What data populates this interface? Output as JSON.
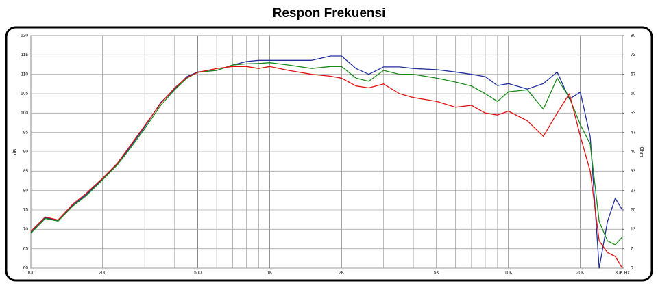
{
  "chart_data": {
    "type": "line",
    "title": "Respon Frekuensi",
    "ylabel": "dB",
    "y2label": "Ohm",
    "log_x": true,
    "grid": true,
    "x": [
      100,
      115,
      130,
      150,
      170,
      200,
      230,
      260,
      300,
      350,
      400,
      450,
      500,
      600,
      700,
      800,
      900,
      1000,
      1200,
      1500,
      1800,
      2000,
      2300,
      2600,
      3000,
      3500,
      4000,
      5000,
      6000,
      7000,
      8000,
      9000,
      10000,
      12000,
      14000,
      16000,
      18000,
      20000,
      22000,
      24000,
      26000,
      28000,
      30000
    ],
    "series": [
      {
        "color": "#1f2f9c",
        "values": [
          69.2,
          73,
          72.2,
          76.2,
          78.9,
          83,
          86.8,
          91.2,
          96.5,
          102.7,
          106.2,
          109.4,
          110.6,
          111,
          112.4,
          113.3,
          113.6,
          113.6,
          113.6,
          113.6,
          114.7,
          114.7,
          111.5,
          110,
          111.9,
          111.9,
          111.5,
          111.2,
          110.6,
          110,
          109.4,
          107.1,
          107.6,
          106.2,
          107.6,
          110.6,
          103.6,
          105.4,
          93.9,
          60,
          72,
          78,
          75
        ]
      },
      {
        "color": "#1a8a1a",
        "values": [
          69,
          72.8,
          72.1,
          76,
          78.6,
          82.8,
          86.6,
          90.8,
          96,
          102,
          106,
          109,
          110.5,
          111,
          112.4,
          112.7,
          112.8,
          113,
          112.4,
          111.5,
          112,
          112,
          109,
          108.2,
          111,
          110,
          110,
          109,
          108,
          107,
          105,
          103,
          105.5,
          106,
          101,
          109,
          104,
          97,
          92,
          72,
          67,
          66,
          68
        ]
      },
      {
        "color": "#e01010",
        "values": [
          69.5,
          73.2,
          72.4,
          76.5,
          79.2,
          83.2,
          87,
          91.5,
          96.8,
          102.5,
          106.5,
          109.2,
          110.5,
          111.5,
          112,
          112,
          111.5,
          112,
          111,
          110,
          109.5,
          109,
          107,
          106.5,
          107.5,
          105,
          104,
          103,
          101.5,
          102,
          100,
          99.5,
          100.5,
          98,
          94,
          100,
          105,
          94,
          85,
          67,
          64,
          63,
          60
        ]
      }
    ],
    "xlim": [
      100,
      30000
    ],
    "xticks": [
      100,
      200,
      500,
      {
        "value": 1000,
        "label": "1K"
      },
      {
        "value": 2000,
        "label": "2K"
      },
      {
        "value": 5000,
        "label": "5K"
      },
      {
        "value": 10000,
        "label": "10K"
      },
      {
        "value": 20000,
        "label": "20K"
      },
      {
        "value": 30000,
        "label": "30K Hz"
      }
    ],
    "xgrid": [
      300,
      400,
      600,
      700,
      800,
      900,
      3000,
      4000,
      6000,
      7000,
      8000,
      9000
    ],
    "ylim": [
      60,
      120
    ],
    "yticks": [
      60,
      65,
      70,
      75,
      80,
      85,
      90,
      95,
      100,
      105,
      110,
      115,
      120
    ],
    "y2lim": [
      0,
      80
    ],
    "y2ticks": [
      0,
      {
        "value": 6.67,
        "label": "7"
      },
      {
        "value": 13.33,
        "label": "13"
      },
      20,
      {
        "value": 26.67,
        "label": "27"
      },
      {
        "value": 33.33,
        "label": "33"
      },
      40,
      {
        "value": 46.67,
        "label": "47"
      },
      {
        "value": 53.33,
        "label": "53"
      },
      60,
      {
        "value": 66.67,
        "label": "67"
      },
      {
        "value": 73.33,
        "label": "73"
      },
      80
    ]
  }
}
